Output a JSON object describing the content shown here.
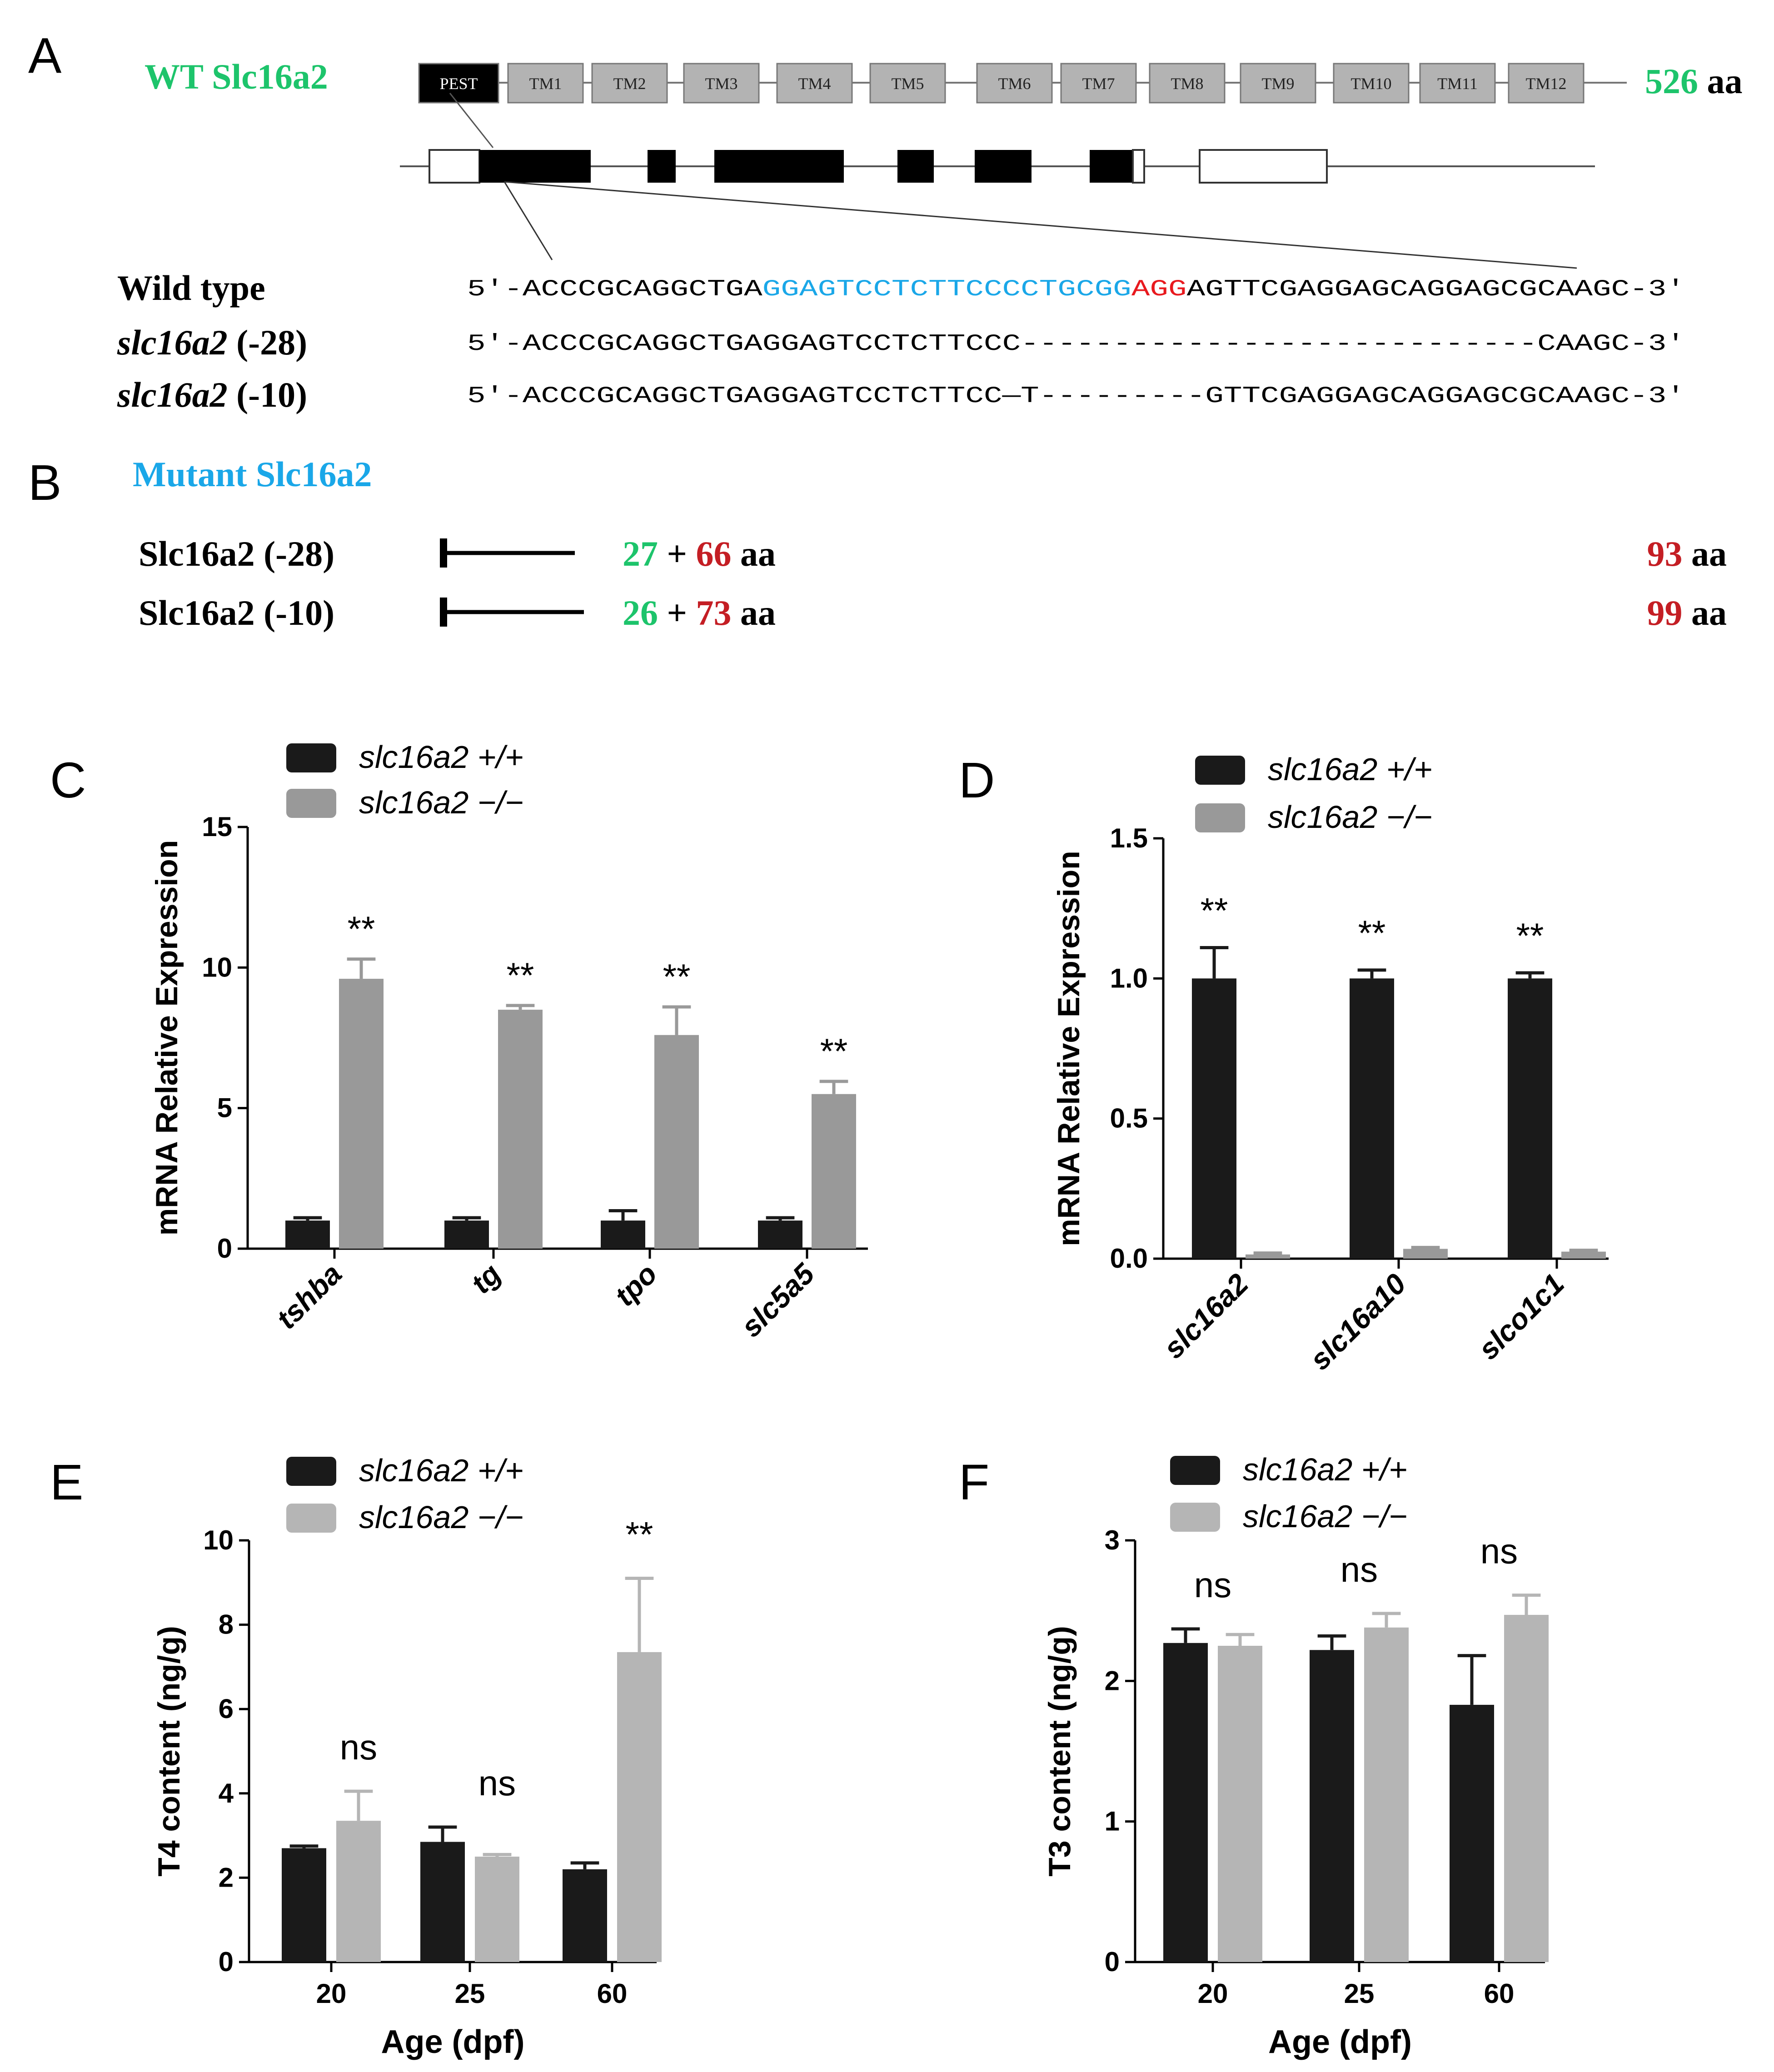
{
  "panel_a": {
    "letter": "A",
    "title": "WT Slc16a2",
    "length_num": "526",
    "length_unit": "aa",
    "domains": [
      "PEST",
      "TM1",
      "TM2",
      "TM3",
      "TM4",
      "TM5",
      "TM6",
      "TM7",
      "TM8",
      "TM9",
      "TM10",
      "TM11",
      "TM12"
    ],
    "seq_rows": [
      {
        "label_main": "Wild type",
        "label_suffix": "",
        "parts": [
          {
            "text": "5′-ACCCGCAGGCTGA",
            "color": "#000000"
          },
          {
            "text": "GGAGTCCTCTTCCCCTGCGG",
            "color": "#1aa7e8"
          },
          {
            "text": "AGG",
            "color": "#e8191e"
          },
          {
            "text": "AGTTCGAGGAGCAGGAGCGCAAGC-3′",
            "color": "#000000"
          }
        ]
      },
      {
        "label_main": "slc16a2",
        "label_suffix": "(-28)",
        "parts": [
          {
            "text": "5′-ACCCGCAGGCTGAGGAGTCCTCTTCCC----------------------------CAAGC-3′",
            "color": "#000000"
          }
        ]
      },
      {
        "label_main": "slc16a2",
        "label_suffix": "(-10)",
        "parts": [
          {
            "text": "5′-ACCCGCAGGCTGAGGAGTCCTCTTCC—T---------GTTCGAGGAGCAGGAGCGCAAGC-3′",
            "color": "#000000"
          }
        ]
      }
    ]
  },
  "panel_b": {
    "letter": "B",
    "title": "Mutant Slc16a2",
    "rows": [
      {
        "label": "Slc16a2  (-28)",
        "n1": "27",
        "plus": "+",
        "n2": "66",
        "unit": "aa",
        "total": "93",
        "total_unit": "aa"
      },
      {
        "label": "Slc16a2 (-10)",
        "n1": "26",
        "plus": "+",
        "n2": "73",
        "unit": "aa",
        "total": "99",
        "total_unit": "aa"
      }
    ]
  },
  "colors": {
    "green": "#1dc46b",
    "blue": "#1aa7e8",
    "red": "#c41e24",
    "black_bar": "#1a1a1a",
    "gray_bar_cd": "#999999",
    "gray_bar_ef": "#b5b5b5"
  },
  "chart_data": [
    {
      "panel": "C",
      "type": "bar",
      "ylabel": "mRNA Relative Expression",
      "xlabel": "",
      "ylim": [
        0,
        15
      ],
      "yticks": [
        "0",
        "5",
        "10",
        "15"
      ],
      "categories": [
        "tshba",
        "tg",
        "tpo",
        "slc5a5"
      ],
      "series": [
        {
          "name": "slc16a2 +/+",
          "values": [
            1.0,
            1.0,
            1.0,
            1.0
          ],
          "errors": [
            0.1,
            0.1,
            0.35,
            0.1
          ]
        },
        {
          "name": "slc16a2 −/−",
          "values": [
            9.6,
            8.5,
            7.6,
            5.5
          ],
          "errors": [
            0.7,
            0.15,
            1.0,
            0.45
          ]
        }
      ],
      "annotations": [
        "**",
        "**",
        "**",
        "**"
      ]
    },
    {
      "panel": "D",
      "type": "bar",
      "ylabel": "mRNA Relative Expression",
      "xlabel": "",
      "ylim": [
        0,
        1.5
      ],
      "yticks": [
        "0.0",
        "0.5",
        "1.0",
        "1.5"
      ],
      "categories": [
        "slc16a2",
        "slc16a10",
        "slco1c1"
      ],
      "series": [
        {
          "name": "slc16a2 +/+",
          "values": [
            1.0,
            1.0,
            1.0
          ],
          "errors": [
            0.11,
            0.03,
            0.02
          ]
        },
        {
          "name": "slc16a2 −/−",
          "values": [
            0.015,
            0.035,
            0.025
          ],
          "errors": [
            0.005,
            0.005,
            0.005
          ]
        }
      ],
      "annotations": [
        "**",
        "**",
        "**"
      ]
    },
    {
      "panel": "E",
      "type": "bar",
      "ylabel": "T4 content (ng/g)",
      "xlabel": "Age (dpf)",
      "ylim": [
        0,
        10
      ],
      "yticks": [
        "0",
        "2",
        "4",
        "6",
        "8",
        "10"
      ],
      "categories": [
        "20",
        "25",
        "60"
      ],
      "series": [
        {
          "name": "slc16a2 +/+",
          "values": [
            2.7,
            2.85,
            2.2
          ],
          "errors": [
            0.05,
            0.35,
            0.15
          ]
        },
        {
          "name": "slc16a2 −/−",
          "values": [
            3.35,
            2.5,
            7.35
          ],
          "errors": [
            0.7,
            0.05,
            1.75
          ]
        }
      ],
      "annotations": [
        "ns",
        "ns",
        "**"
      ]
    },
    {
      "panel": "F",
      "type": "bar",
      "ylabel": "T3 content (ng/g)",
      "xlabel": "Age (dpf)",
      "ylim": [
        0,
        3
      ],
      "yticks": [
        "0",
        "1",
        "2",
        "3"
      ],
      "categories": [
        "20",
        "25",
        "60"
      ],
      "series": [
        {
          "name": "slc16a2 +/+",
          "values": [
            2.27,
            2.22,
            1.83
          ],
          "errors": [
            0.1,
            0.1,
            0.35
          ]
        },
        {
          "name": "slc16a2 −/−",
          "values": [
            2.25,
            2.38,
            2.47
          ],
          "errors": [
            0.08,
            0.1,
            0.14
          ]
        }
      ],
      "annotations": [
        "ns",
        "ns",
        "ns"
      ]
    }
  ]
}
